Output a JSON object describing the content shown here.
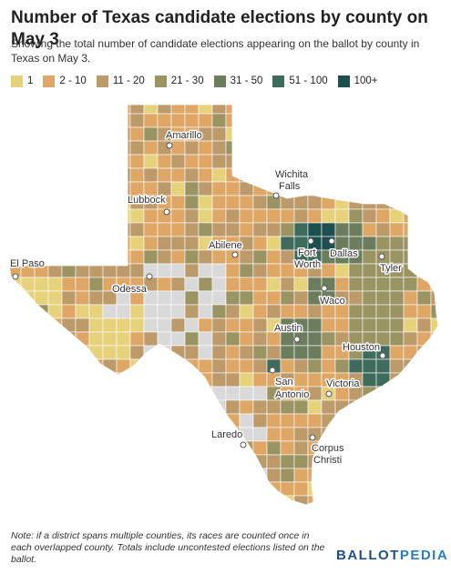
{
  "title": "Number of Texas candidate elections by county on May 3",
  "subtitle": "Showing the total number of candidate elections appearing on the ballot by county in Texas on May 3.",
  "legend": [
    {
      "label": "1",
      "color": "#e6d27a"
    },
    {
      "label": "2 - 10",
      "color": "#dfa766"
    },
    {
      "label": "11 - 20",
      "color": "#bc9a6a"
    },
    {
      "label": "21 - 30",
      "color": "#9a9362"
    },
    {
      "label": "31 - 50",
      "color": "#6b7d5c"
    },
    {
      "label": "51 - 100",
      "color": "#3f6b5c"
    },
    {
      "label": "100+",
      "color": "#1e4f4f"
    }
  ],
  "no_data_color": "#d9d9d9",
  "cities": [
    {
      "id": "amarillo",
      "label": "Amarillo"
    },
    {
      "id": "wichita-falls",
      "label": "Wichita Falls",
      "lines": [
        "Wichita",
        "Falls"
      ]
    },
    {
      "id": "lubbock",
      "label": "Lubbock"
    },
    {
      "id": "abilene",
      "label": "Abilene"
    },
    {
      "id": "fort-worth",
      "label": "Fort Worth",
      "lines": [
        "Fort",
        "Worth"
      ]
    },
    {
      "id": "dallas",
      "label": "Dallas"
    },
    {
      "id": "el-paso",
      "label": "El Paso"
    },
    {
      "id": "odessa",
      "label": "Odessa"
    },
    {
      "id": "tyler",
      "label": "Tyler"
    },
    {
      "id": "waco",
      "label": "Waco"
    },
    {
      "id": "austin",
      "label": "Austin"
    },
    {
      "id": "houston",
      "label": "Houston"
    },
    {
      "id": "san-antonio",
      "label": "San Antonio",
      "lines": [
        "San",
        "Antonio"
      ]
    },
    {
      "id": "victoria",
      "label": "Victoria"
    },
    {
      "id": "laredo",
      "label": "Laredo"
    },
    {
      "id": "corpus-christi",
      "label": "Corpus Christi",
      "lines": [
        "Corpus",
        "Christi"
      ]
    }
  ],
  "note": "Note: if a district spans multiple counties, its races are counted once in each overlapped county. Totals include uncontested elections listed on the ballot.",
  "logo": {
    "part1": "BALLOT",
    "part2": "PEDIA"
  }
}
